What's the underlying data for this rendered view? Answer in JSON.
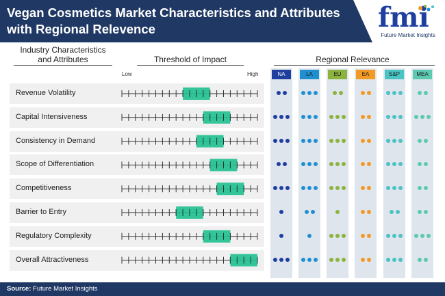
{
  "title": {
    "line1": "Vegan Cosmetics Market Characteristics and Attributes",
    "line2": "with Regional Relevence"
  },
  "logo": {
    "wordmark": "fmi",
    "tagline": "Future Market Insights"
  },
  "headers": {
    "characteristics_line1": "Industry Characteristics",
    "characteristics_line2": "and Attributes",
    "threshold": "Threshold of Impact",
    "regional": "Regional Relevance",
    "low": "Low",
    "high": "High"
  },
  "source": {
    "label": "Source:",
    "text": " Future Market Insights"
  },
  "colors": {
    "header_bg": "#1f3864",
    "bar": "#1fbf8f",
    "NA": "#1f3f9f",
    "LA": "#1e90d0",
    "EU": "#8cb33d",
    "EA": "#f39a24",
    "SAP": "#49c3c3",
    "MEA": "#5cc9b1"
  },
  "chart_data": {
    "type": "table",
    "scale": {
      "min": 0,
      "max": 20,
      "low_label": "Low",
      "high_label": "High"
    },
    "regions": [
      "NA",
      "LA",
      "EU",
      "EA",
      "S&P",
      "MEA"
    ],
    "rows": [
      {
        "label": "Revenue Volatility",
        "impact": [
          9,
          13
        ],
        "dots": [
          2,
          3,
          2,
          2,
          3,
          2
        ]
      },
      {
        "label": "Capital Intensiveness",
        "impact": [
          12,
          16
        ],
        "dots": [
          3,
          3,
          3,
          2,
          3,
          3
        ]
      },
      {
        "label": "Consistency in Demand",
        "impact": [
          11,
          15
        ],
        "dots": [
          3,
          3,
          3,
          2,
          3,
          2
        ]
      },
      {
        "label": "Scope of Differentiation",
        "impact": [
          13,
          17
        ],
        "dots": [
          2,
          3,
          3,
          2,
          3,
          2
        ]
      },
      {
        "label": "Competitiveness",
        "impact": [
          14,
          18
        ],
        "dots": [
          3,
          3,
          3,
          2,
          3,
          2
        ]
      },
      {
        "label": "Barrier to Entry",
        "impact": [
          8,
          12
        ],
        "dots": [
          1,
          2,
          1,
          2,
          2,
          2
        ]
      },
      {
        "label": "Regulatory Complexity",
        "impact": [
          12,
          16
        ],
        "dots": [
          1,
          1,
          3,
          2,
          3,
          3
        ]
      },
      {
        "label": "Overall Attractiveness",
        "impact": [
          16,
          20
        ],
        "dots": [
          3,
          3,
          3,
          2,
          3,
          2
        ]
      }
    ]
  }
}
